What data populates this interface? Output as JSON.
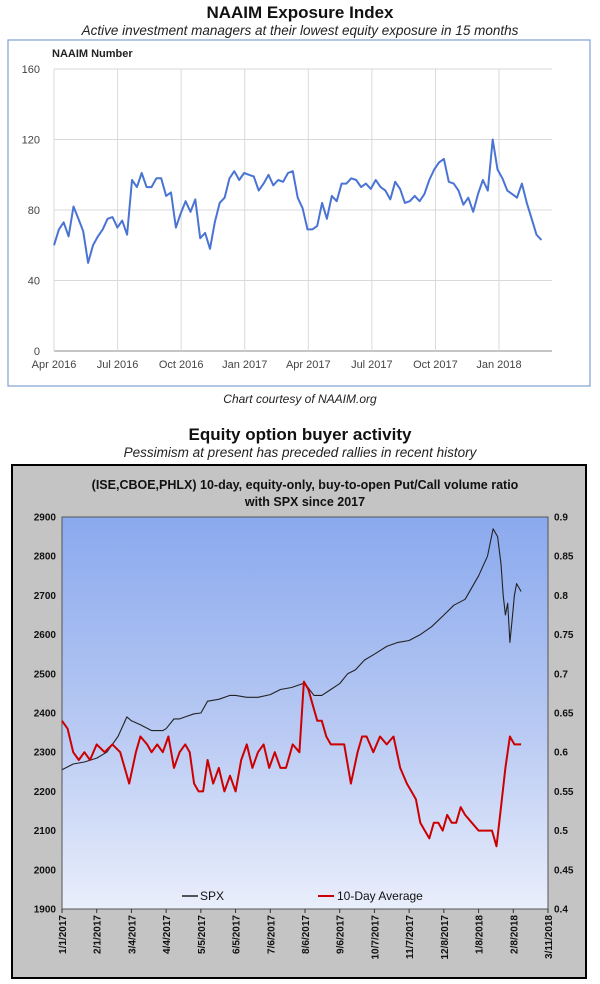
{
  "chart_data": [
    {
      "type": "line",
      "title": "NAAIM Exposure Index",
      "subtitle": "Active investment managers at their lowest equity exposure in 15 months",
      "ylabel": "NAAIM Number",
      "credit": "Chart courtesy of NAAIM.org",
      "ylim": [
        0,
        160
      ],
      "yticks": [
        0,
        40,
        80,
        120,
        160
      ],
      "xticks": [
        {
          "label": "Apr 2016",
          "t": 0
        },
        {
          "label": "Jul 2016",
          "t": 3
        },
        {
          "label": "Oct 2016",
          "t": 6
        },
        {
          "label": "Jan 2017",
          "t": 9
        },
        {
          "label": "Apr 2017",
          "t": 12
        },
        {
          "label": "Jul 2017",
          "t": 15
        },
        {
          "label": "Oct 2017",
          "t": 18
        },
        {
          "label": "Jan 2018",
          "t": 21
        }
      ],
      "xlim": [
        0,
        23.5
      ],
      "grid": true,
      "color": "#4a74d4",
      "series": [
        {
          "t": [
            0,
            0.23,
            0.46,
            0.69,
            0.92,
            1.15,
            1.38,
            1.61,
            1.84,
            2.07,
            2.3,
            2.53,
            2.76,
            2.99,
            3.22,
            3.45,
            3.68,
            3.91,
            4.14,
            4.37,
            4.6,
            4.83,
            5.06,
            5.29,
            5.52,
            5.75,
            5.98,
            6.21,
            6.44,
            6.67,
            6.9,
            7.13,
            7.36,
            7.59,
            7.82,
            8.05,
            8.28,
            8.51,
            8.74,
            8.97,
            9.2,
            9.43,
            9.66,
            9.89,
            10.12,
            10.35,
            10.58,
            10.81,
            11.04,
            11.27,
            11.5,
            11.73,
            11.96,
            12.19,
            12.42,
            12.65,
            12.88,
            13.11,
            13.34,
            13.57,
            13.8,
            14.03,
            14.26,
            14.49,
            14.72,
            14.95,
            15.18,
            15.41,
            15.64,
            15.87,
            16.1,
            16.33,
            16.56,
            16.79,
            17.02,
            17.25,
            17.48,
            17.71,
            17.94,
            18.17,
            18.4,
            18.63,
            18.86,
            19.09,
            19.32,
            19.55,
            19.78,
            20.01,
            20.24,
            20.47,
            20.7,
            20.93,
            21.16,
            21.39,
            21.62,
            21.85,
            22.08,
            22.31,
            22.54,
            22.77,
            23.0
          ],
          "values": [
            60,
            69,
            73,
            65,
            82,
            75,
            68,
            50,
            60,
            65,
            69,
            75,
            76,
            70,
            74,
            66,
            97,
            93,
            101,
            93,
            93,
            98,
            98,
            88,
            90,
            70,
            78,
            85,
            79,
            86,
            64,
            67,
            58,
            73,
            84,
            87,
            98,
            102,
            97,
            101,
            100,
            99,
            91,
            95,
            100,
            94,
            97,
            96,
            101,
            102,
            87,
            81,
            69,
            69,
            71,
            84,
            75,
            88,
            85,
            95,
            95,
            98,
            97,
            93,
            95,
            92,
            97,
            93,
            91,
            86,
            96,
            92,
            84,
            85,
            88,
            85,
            89,
            97,
            103,
            107,
            109,
            96,
            95,
            91,
            83,
            87,
            79,
            89,
            97,
            91,
            120,
            103,
            98,
            91,
            89,
            87,
            95,
            84,
            75,
            66,
            63
          ]
        }
      ]
    },
    {
      "type": "line",
      "title": "Equity option buyer activity",
      "subtitle": "Pessimism at present has preceded rallies in recent history",
      "inner_title_line1": "(ISE,CBOE,PHLX) 10-day, equity-only, buy-to-open Put/Call volume ratio",
      "inner_title_line2": "with SPX since 2017",
      "y_left_ticks": [
        1900,
        2000,
        2100,
        2200,
        2300,
        2400,
        2500,
        2600,
        2700,
        2800,
        2900
      ],
      "y_left_lim": [
        1900,
        2900
      ],
      "y_right_ticks": [
        0.4,
        0.45,
        0.5,
        0.55,
        0.6,
        0.65,
        0.7,
        0.75,
        0.8,
        0.85,
        0.9
      ],
      "y_right_lim": [
        0.4,
        0.9
      ],
      "x_ticks": [
        "1/1/2017",
        "2/1/2017",
        "3/4/2017",
        "4/4/2017",
        "5/5/2017",
        "6/5/2017",
        "7/6/2017",
        "8/6/2017",
        "9/6/2017",
        "10/7/2017",
        "11/7/2017",
        "12/8/2017",
        "1/8/2018",
        "2/8/2018",
        "3/11/2018"
      ],
      "x_tick_days": [
        0,
        31,
        62,
        93,
        124,
        155,
        186,
        217,
        248,
        279,
        310,
        341,
        372,
        403,
        434
      ],
      "x_lim_days": [
        0,
        434
      ],
      "legend": [
        {
          "name": "SPX",
          "color": "#222222"
        },
        {
          "name": "10-Day Average",
          "color": "#cc0000"
        }
      ],
      "series": [
        {
          "name": "SPX",
          "axis": "left",
          "color": "#222222",
          "x_days": [
            0,
            10,
            20,
            31,
            40,
            50,
            58,
            62,
            70,
            80,
            90,
            93,
            100,
            105,
            110,
            118,
            124,
            130,
            140,
            150,
            155,
            165,
            175,
            186,
            195,
            205,
            215,
            217,
            225,
            232,
            240,
            248,
            255,
            262,
            270,
            279,
            290,
            300,
            310,
            320,
            330,
            341,
            350,
            360,
            372,
            380,
            385,
            389,
            392,
            394,
            396,
            398,
            400,
            402,
            404,
            406,
            408,
            410
          ],
          "values": [
            2255,
            2270,
            2275,
            2285,
            2300,
            2340,
            2390,
            2380,
            2370,
            2355,
            2355,
            2360,
            2385,
            2385,
            2390,
            2398,
            2400,
            2430,
            2435,
            2445,
            2445,
            2440,
            2440,
            2447,
            2460,
            2465,
            2475,
            2475,
            2445,
            2445,
            2460,
            2475,
            2500,
            2510,
            2535,
            2550,
            2570,
            2580,
            2585,
            2600,
            2620,
            2650,
            2675,
            2690,
            2750,
            2800,
            2870,
            2850,
            2780,
            2700,
            2650,
            2680,
            2580,
            2640,
            2700,
            2730,
            2720,
            2710
          ]
        },
        {
          "name": "10-Day Average",
          "axis": "right",
          "color": "#cc0000",
          "x_days": [
            0,
            5,
            10,
            15,
            20,
            25,
            31,
            38,
            45,
            52,
            60,
            66,
            70,
            76,
            80,
            85,
            90,
            95,
            100,
            105,
            110,
            114,
            118,
            122,
            126,
            130,
            135,
            140,
            145,
            150,
            155,
            160,
            165,
            170,
            175,
            180,
            185,
            190,
            195,
            200,
            206,
            212,
            216,
            220,
            224,
            228,
            232,
            236,
            240,
            246,
            252,
            258,
            264,
            268,
            272,
            278,
            284,
            290,
            296,
            302,
            308,
            312,
            316,
            320,
            324,
            328,
            332,
            336,
            340,
            344,
            348,
            352,
            356,
            360,
            366,
            372,
            376,
            380,
            384,
            388,
            392,
            396,
            400,
            404,
            410
          ],
          "values": [
            0.64,
            0.63,
            0.6,
            0.59,
            0.6,
            0.59,
            0.61,
            0.6,
            0.61,
            0.6,
            0.56,
            0.6,
            0.62,
            0.61,
            0.6,
            0.61,
            0.6,
            0.62,
            0.58,
            0.6,
            0.61,
            0.6,
            0.56,
            0.55,
            0.55,
            0.59,
            0.56,
            0.58,
            0.55,
            0.57,
            0.55,
            0.59,
            0.61,
            0.58,
            0.6,
            0.61,
            0.58,
            0.6,
            0.58,
            0.58,
            0.61,
            0.6,
            0.69,
            0.68,
            0.66,
            0.64,
            0.64,
            0.62,
            0.61,
            0.61,
            0.61,
            0.56,
            0.6,
            0.62,
            0.62,
            0.6,
            0.62,
            0.61,
            0.62,
            0.58,
            0.56,
            0.55,
            0.54,
            0.51,
            0.5,
            0.49,
            0.51,
            0.51,
            0.5,
            0.52,
            0.51,
            0.51,
            0.53,
            0.52,
            0.51,
            0.5,
            0.5,
            0.5,
            0.5,
            0.48,
            0.53,
            0.58,
            0.62,
            0.61,
            0.61
          ]
        }
      ]
    }
  ]
}
